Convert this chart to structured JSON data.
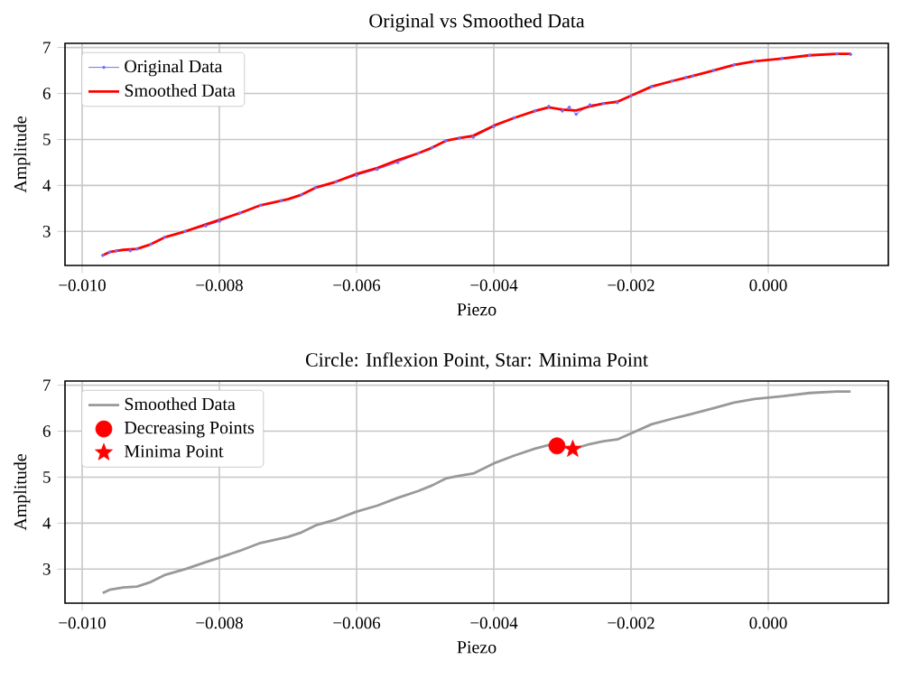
{
  "chart_data": [
    {
      "type": "line",
      "title": "Original vs Smoothed Data",
      "xlabel": "Piezo",
      "ylabel": "Amplitude",
      "xlim": [
        -0.01025,
        0.00175
      ],
      "ylim": [
        2.26,
        7.09
      ],
      "xticks": [
        {
          "value": -0.01,
          "label": "−0.010"
        },
        {
          "value": -0.008,
          "label": "−0.008"
        },
        {
          "value": -0.006,
          "label": "−0.006"
        },
        {
          "value": -0.004,
          "label": "−0.004"
        },
        {
          "value": -0.002,
          "label": "−0.002"
        },
        {
          "value": 0.0,
          "label": "0.000"
        }
      ],
      "yticks": [
        3,
        4,
        5,
        6,
        7
      ],
      "grid": true,
      "legend": "top left",
      "series": [
        {
          "name": "Original Data",
          "color": "#6f6fff",
          "marker": "circle",
          "x": [
            -0.0097,
            -0.0096,
            -0.0095,
            -0.0093,
            -0.0092,
            -0.009,
            -0.0088,
            -0.0085,
            -0.0082,
            -0.008,
            -0.0077,
            -0.0074,
            -0.0071,
            -0.0068,
            -0.0066,
            -0.0063,
            -0.006,
            -0.0057,
            -0.0054,
            -0.0051,
            -0.0049,
            -0.0047,
            -0.0045,
            -0.0043,
            -0.004,
            -0.0037,
            -0.0034,
            -0.0032,
            -0.003,
            -0.0029,
            -0.0028,
            -0.0026,
            -0.0024,
            -0.0022,
            -0.002,
            -0.0017,
            -0.0014,
            -0.0012,
            -0.0011,
            -0.0008,
            -0.0005,
            -0.0002,
            0.0002,
            0.0006,
            0.001,
            0.0012
          ],
          "values": [
            2.48,
            2.55,
            2.58,
            2.58,
            2.62,
            2.72,
            2.87,
            3.0,
            3.12,
            3.22,
            3.4,
            3.57,
            3.67,
            3.8,
            3.95,
            4.08,
            4.22,
            4.35,
            4.5,
            4.7,
            4.82,
            4.97,
            5.03,
            5.05,
            5.28,
            5.47,
            5.62,
            5.72,
            5.62,
            5.7,
            5.55,
            5.75,
            5.78,
            5.8,
            5.95,
            6.15,
            6.27,
            6.35,
            6.38,
            6.5,
            6.62,
            6.7,
            6.76,
            6.83,
            6.86,
            6.85
          ]
        },
        {
          "name": "Smoothed Data",
          "color": "#ff0000",
          "marker": "none",
          "x": [
            -0.0097,
            -0.0096,
            -0.0094,
            -0.0092,
            -0.009,
            -0.0088,
            -0.0085,
            -0.0082,
            -0.008,
            -0.0077,
            -0.0074,
            -0.007,
            -0.0068,
            -0.0066,
            -0.0063,
            -0.006,
            -0.0057,
            -0.0054,
            -0.0051,
            -0.0049,
            -0.0047,
            -0.0045,
            -0.0043,
            -0.004,
            -0.0037,
            -0.0034,
            -0.0032,
            -0.003,
            -0.0028,
            -0.0026,
            -0.0024,
            -0.0022,
            -0.002,
            -0.0017,
            -0.0014,
            -0.0011,
            -0.0008,
            -0.0005,
            -0.0002,
            0.0002,
            0.0006,
            0.001,
            0.0012
          ],
          "values": [
            2.48,
            2.55,
            2.6,
            2.62,
            2.72,
            2.87,
            3.0,
            3.15,
            3.25,
            3.4,
            3.57,
            3.7,
            3.8,
            3.95,
            4.08,
            4.25,
            4.38,
            4.55,
            4.7,
            4.82,
            4.97,
            5.03,
            5.08,
            5.3,
            5.47,
            5.62,
            5.7,
            5.65,
            5.63,
            5.72,
            5.78,
            5.82,
            5.95,
            6.15,
            6.27,
            6.38,
            6.5,
            6.62,
            6.7,
            6.76,
            6.83,
            6.86,
            6.86
          ]
        }
      ]
    },
    {
      "type": "line",
      "title": "Circle: Inflexion Point, Star: Minima Point",
      "xlabel": "Piezo",
      "ylabel": "Amplitude",
      "xlim": [
        -0.01025,
        0.00175
      ],
      "ylim": [
        2.26,
        7.09
      ],
      "xticks": [
        {
          "value": -0.01,
          "label": "−0.010"
        },
        {
          "value": -0.008,
          "label": "−0.008"
        },
        {
          "value": -0.006,
          "label": "−0.006"
        },
        {
          "value": -0.004,
          "label": "−0.004"
        },
        {
          "value": -0.002,
          "label": "−0.002"
        },
        {
          "value": 0.0,
          "label": "0.000"
        }
      ],
      "yticks": [
        3,
        4,
        5,
        6,
        7
      ],
      "grid": true,
      "legend": "top left",
      "series": [
        {
          "name": "Smoothed Data",
          "color": "#999999",
          "marker": "none",
          "x": [
            -0.0097,
            -0.0096,
            -0.0094,
            -0.0092,
            -0.009,
            -0.0088,
            -0.0085,
            -0.0082,
            -0.008,
            -0.0077,
            -0.0074,
            -0.007,
            -0.0068,
            -0.0066,
            -0.0063,
            -0.006,
            -0.0057,
            -0.0054,
            -0.0051,
            -0.0049,
            -0.0047,
            -0.0045,
            -0.0043,
            -0.004,
            -0.0037,
            -0.0034,
            -0.0032,
            -0.003,
            -0.0028,
            -0.0026,
            -0.0024,
            -0.0022,
            -0.002,
            -0.0017,
            -0.0014,
            -0.0011,
            -0.0008,
            -0.0005,
            -0.0002,
            0.0002,
            0.0006,
            0.001,
            0.0012
          ],
          "values": [
            2.48,
            2.55,
            2.6,
            2.62,
            2.72,
            2.87,
            3.0,
            3.15,
            3.25,
            3.4,
            3.57,
            3.7,
            3.8,
            3.95,
            4.08,
            4.25,
            4.38,
            4.55,
            4.7,
            4.82,
            4.97,
            5.03,
            5.08,
            5.3,
            5.47,
            5.62,
            5.7,
            5.65,
            5.63,
            5.72,
            5.78,
            5.82,
            5.95,
            6.15,
            6.27,
            6.38,
            6.5,
            6.62,
            6.7,
            6.76,
            6.83,
            6.86,
            6.86
          ]
        },
        {
          "name": "Decreasing Points",
          "type": "scatter",
          "color": "#ff0000",
          "marker": "circle",
          "x": [
            -0.00308
          ],
          "values": [
            5.68
          ]
        },
        {
          "name": "Minima Point",
          "type": "scatter",
          "color": "#ff0000",
          "marker": "star",
          "x": [
            -0.00285
          ],
          "values": [
            5.61
          ]
        }
      ]
    }
  ]
}
